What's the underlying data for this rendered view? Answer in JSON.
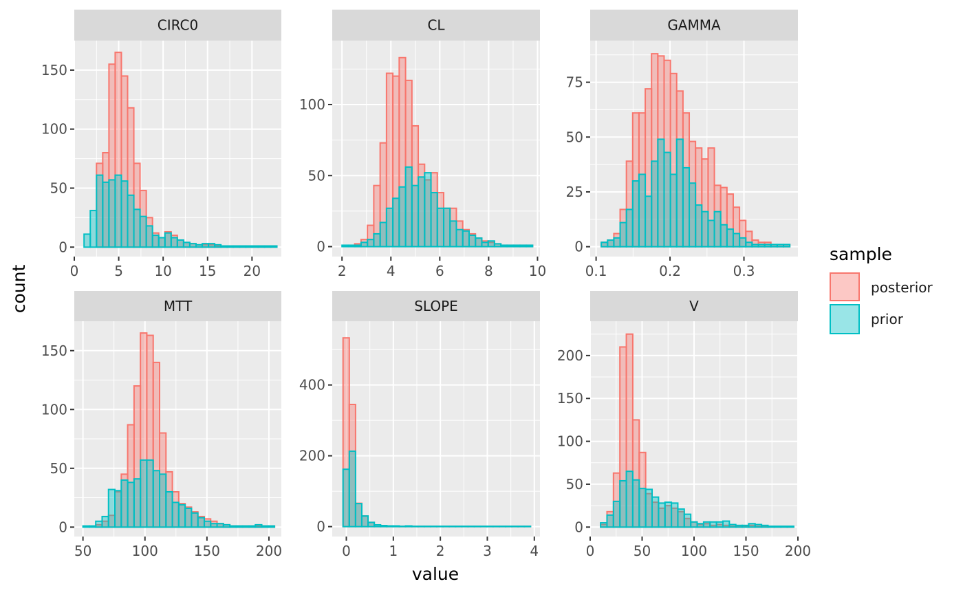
{
  "chart_data": {
    "type": "bar",
    "xlabel": "value",
    "ylabel": "count",
    "legend": {
      "title": "sample",
      "placement": "right",
      "entries": [
        {
          "name": "posterior",
          "color": "#F8766D"
        },
        {
          "name": "prior",
          "color": "#00BFC4"
        }
      ]
    },
    "panels": [
      {
        "name": "CIRC0",
        "xlim": [
          0,
          23.3
        ],
        "ylim": [
          -8,
          175
        ],
        "xticks": [
          0,
          5,
          10,
          15,
          20
        ],
        "xtick_labels": [
          "0",
          "5",
          "10",
          "15",
          "20"
        ],
        "yticks": [
          0,
          50,
          100,
          150
        ],
        "ytick_labels": [
          "0",
          "50",
          "100",
          "150"
        ],
        "bins": {
          "start": 1.1,
          "width": 0.7
        },
        "series": [
          {
            "name": "posterior",
            "values": [
              0,
              0,
              71,
              80,
              155,
              165,
              145,
              118,
              71,
              48,
              25,
              12,
              8,
              13,
              10,
              6,
              4,
              3,
              2,
              2,
              2,
              1,
              1,
              1,
              1,
              1,
              1,
              1,
              1,
              1,
              1
            ]
          },
          {
            "name": "prior",
            "values": [
              11,
              31,
              61,
              55,
              57,
              61,
              56,
              44,
              32,
              26,
              18,
              10,
              8,
              12,
              8,
              6,
              4,
              3,
              2,
              3,
              3,
              2,
              1,
              1,
              1,
              1,
              1,
              1,
              1,
              1,
              1
            ]
          }
        ]
      },
      {
        "name": "CL",
        "xlim": [
          1.6,
          10.1
        ],
        "ylim": [
          -7,
          145
        ],
        "xticks": [
          2,
          4,
          6,
          8,
          10
        ],
        "xtick_labels": [
          "2",
          "4",
          "6",
          "8",
          "10"
        ],
        "yticks": [
          0,
          50,
          100
        ],
        "ytick_labels": [
          "0",
          "50",
          "100"
        ],
        "bins": {
          "start": 2.0,
          "width": 0.26
        },
        "series": [
          {
            "name": "posterior",
            "values": [
              0,
              0,
              2,
              5,
              15,
              43,
              73,
              122,
              120,
              133,
              117,
              85,
              58,
              47,
              52,
              38,
              27,
              27,
              18,
              12,
              9,
              6,
              4,
              3,
              2,
              1,
              1,
              1,
              1,
              1
            ]
          },
          {
            "name": "prior",
            "values": [
              1,
              1,
              1,
              3,
              5,
              9,
              17,
              27,
              34,
              42,
              56,
              43,
              49,
              52,
              38,
              27,
              27,
              18,
              12,
              11,
              8,
              6,
              3,
              4,
              2,
              1,
              1,
              1,
              1,
              1
            ]
          }
        ]
      },
      {
        "name": "GAMMA",
        "xlim": [
          0.092,
          0.373
        ],
        "ylim": [
          -4.5,
          94
        ],
        "xticks": [
          0.1,
          0.2,
          0.3
        ],
        "xtick_labels": [
          "0.1",
          "0.2",
          "0.3"
        ],
        "yticks": [
          0,
          25,
          50,
          75
        ],
        "ytick_labels": [
          "0",
          "25",
          "50",
          "75"
        ],
        "bins": {
          "start": 0.107,
          "width": 0.0085
        },
        "series": [
          {
            "name": "posterior",
            "values": [
              2,
              3,
              6,
              17,
              39,
              61,
              61,
              72,
              88,
              87,
              85,
              79,
              71,
              61,
              48,
              45,
              40,
              45,
              28,
              27,
              24,
              18,
              12,
              7,
              3,
              2,
              2,
              1,
              1,
              1
            ]
          },
          {
            "name": "prior",
            "values": [
              2,
              3,
              4,
              11,
              17,
              30,
              33,
              23,
              39,
              49,
              43,
              33,
              49,
              36,
              29,
              19,
              16,
              12,
              16,
              10,
              8,
              6,
              4,
              2,
              1,
              1,
              1,
              1,
              1,
              1
            ]
          }
        ]
      },
      {
        "name": "MTT",
        "xlim": [
          43,
          210
        ],
        "ylim": [
          -8,
          175
        ],
        "xticks": [
          50,
          100,
          150,
          200
        ],
        "xtick_labels": [
          "50",
          "100",
          "150",
          "200"
        ],
        "yticks": [
          0,
          50,
          100,
          150
        ],
        "ytick_labels": [
          "0",
          "50",
          "100",
          "150"
        ],
        "bins": {
          "start": 50,
          "width": 5.15
        },
        "series": [
          {
            "name": "posterior",
            "values": [
              0,
              0,
              2,
              5,
              10,
              30,
              45,
              87,
              120,
              165,
              163,
              140,
              80,
              47,
              30,
              20,
              17,
              13,
              9,
              7,
              5,
              3,
              2,
              1,
              1,
              1,
              1,
              1,
              1,
              1
            ]
          },
          {
            "name": "prior",
            "values": [
              1,
              1,
              5,
              9,
              32,
              31,
              40,
              38,
              41,
              57,
              57,
              48,
              45,
              30,
              21,
              19,
              16,
              12,
              8,
              5,
              3,
              3,
              2,
              1,
              1,
              1,
              1,
              2,
              1,
              1
            ]
          }
        ]
      },
      {
        "name": "SLOPE",
        "xlim": [
          -0.3,
          4.12
        ],
        "ylim": [
          -28,
          580
        ],
        "xticks": [
          0,
          1,
          2,
          3,
          4
        ],
        "xtick_labels": [
          "0",
          "1",
          "2",
          "3",
          "4"
        ],
        "yticks": [
          0,
          200,
          400
        ],
        "ytick_labels": [
          "0",
          "200",
          "400"
        ],
        "bins": {
          "start": -0.07,
          "width": 0.133
        },
        "series": [
          {
            "name": "posterior",
            "values": [
              533,
              345,
              66,
              30,
              12,
              5,
              3,
              2,
              1,
              1,
              1,
              1,
              1,
              1,
              1,
              1,
              1,
              1,
              1,
              1,
              1,
              1,
              1,
              1,
              1,
              1,
              1,
              1,
              1,
              1
            ]
          },
          {
            "name": "prior",
            "values": [
              162,
              213,
              65,
              30,
              12,
              5,
              3,
              2,
              2,
              1,
              2,
              1,
              1,
              1,
              1,
              1,
              1,
              1,
              1,
              1,
              1,
              1,
              1,
              1,
              1,
              1,
              1,
              1,
              1,
              1
            ]
          }
        ]
      },
      {
        "name": "V",
        "xlim": [
          0,
          200
        ],
        "ylim": [
          -11,
          240
        ],
        "xticks": [
          0,
          50,
          100,
          150,
          200
        ],
        "xtick_labels": [
          "0",
          "50",
          "100",
          "150",
          "200"
        ],
        "yticks": [
          0,
          50,
          100,
          150,
          200
        ],
        "ytick_labels": [
          "0",
          "50",
          "100",
          "150",
          "200"
        ],
        "bins": {
          "start": 10,
          "width": 6.2
        },
        "series": [
          {
            "name": "posterior",
            "values": [
              3,
              18,
              63,
              210,
              225,
              125,
              87,
              39,
              29,
              22,
              25,
              22,
              18,
              10,
              6,
              3,
              4,
              2,
              3,
              2,
              1,
              1,
              1,
              2,
              1,
              1,
              1,
              1,
              1,
              1
            ]
          },
          {
            "name": "prior",
            "values": [
              5,
              14,
              30,
              54,
              65,
              55,
              45,
              44,
              35,
              28,
              29,
              28,
              21,
              15,
              6,
              4,
              6,
              6,
              6,
              7,
              3,
              2,
              2,
              4,
              3,
              2,
              1,
              1,
              1,
              1
            ]
          }
        ]
      }
    ]
  }
}
